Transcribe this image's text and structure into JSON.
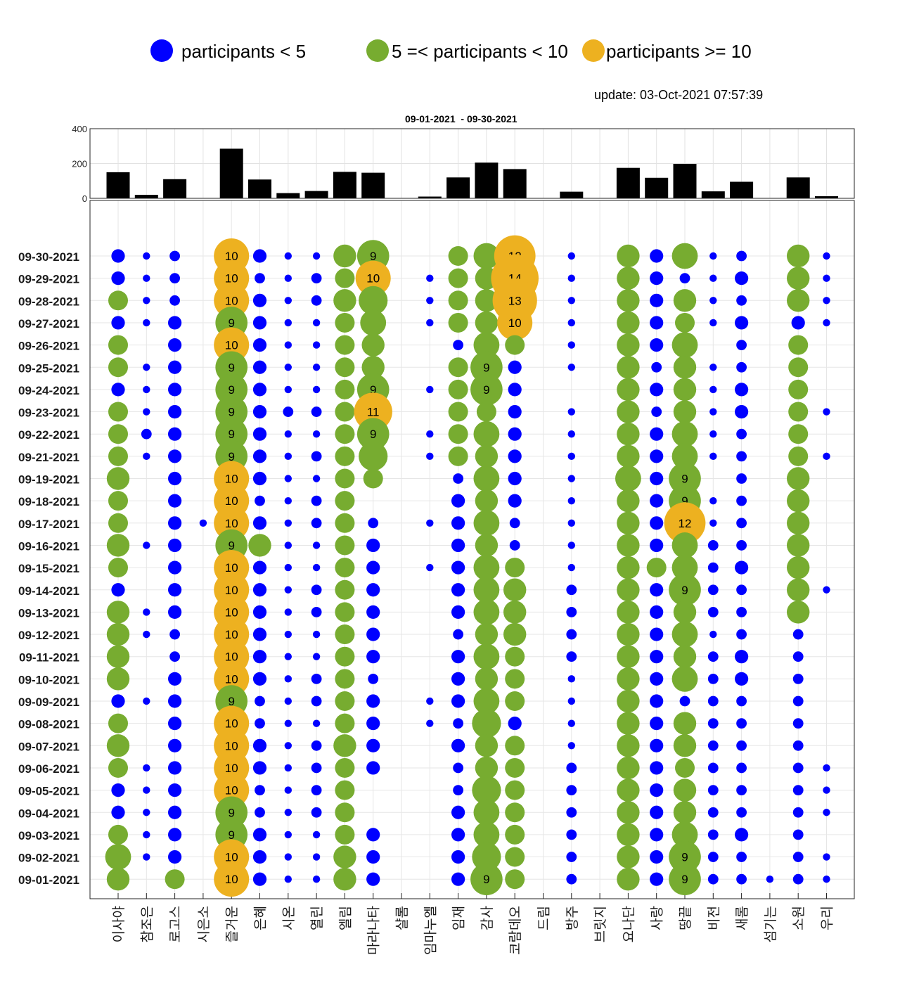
{
  "legend": {
    "low": {
      "label": "participants < 5",
      "color": "#0000ff"
    },
    "mid": {
      "label": "5 =< participants < 10",
      "color": "#77ac30"
    },
    "high": {
      "label": "participants >= 10",
      "color": "#edb120"
    }
  },
  "update_text": "update: 03-Oct-2021 07:57:39",
  "period_text": "09-01-2021  - 09-30-2021",
  "chart_data": [
    {
      "type": "bar",
      "title": "09-01-2021  - 09-30-2021",
      "ylim": [
        0,
        400
      ],
      "yticks": [
        0,
        200,
        400
      ],
      "grid": true,
      "bar_color": "#000000",
      "categories": [
        "이사야",
        "참조은",
        "로고스",
        "시은소",
        "즐거운",
        "은혜",
        "시온",
        "열린",
        "엘림",
        "마라나타",
        "샬롬",
        "임마누엘",
        "임재",
        "감사",
        "코람데오",
        "드림",
        "방주",
        "브릿지",
        "요나단",
        "사랑",
        "땅끝",
        "비전",
        "새롬",
        "섬기는",
        "소원",
        "우리"
      ],
      "values": [
        150,
        20,
        110,
        0,
        285,
        108,
        30,
        42,
        152,
        147,
        0,
        10,
        120,
        205,
        168,
        0,
        38,
        0,
        175,
        118,
        198,
        40,
        95,
        0,
        120,
        12
      ]
    },
    {
      "type": "scatter",
      "subtype": "bubble",
      "grid": true,
      "categories": [
        "이사야",
        "참조은",
        "로고스",
        "시은소",
        "즐거운",
        "은혜",
        "시온",
        "열린",
        "엘림",
        "마라나타",
        "샬롬",
        "임마누엘",
        "임재",
        "감사",
        "코람데오",
        "드림",
        "방주",
        "브릿지",
        "요나단",
        "사랑",
        "땅끝",
        "비전",
        "새롬",
        "섬기는",
        "소원",
        "우리"
      ],
      "dates": [
        "09-30-2021",
        "09-29-2021",
        "09-28-2021",
        "09-27-2021",
        "09-26-2021",
        "09-25-2021",
        "09-24-2021",
        "09-23-2021",
        "09-22-2021",
        "09-21-2021",
        "09-19-2021",
        "09-18-2021",
        "09-17-2021",
        "09-16-2021",
        "09-15-2021",
        "09-14-2021",
        "09-13-2021",
        "09-12-2021",
        "09-11-2021",
        "09-10-2021",
        "09-09-2021",
        "09-08-2021",
        "09-07-2021",
        "09-06-2021",
        "09-05-2021",
        "09-04-2021",
        "09-03-2021",
        "09-02-2021",
        "09-01-2021"
      ],
      "participants": [
        [
          3,
          1,
          2,
          0,
          10,
          3,
          1,
          1,
          6,
          9,
          0,
          0,
          5,
          7,
          12,
          0,
          1,
          0,
          6,
          3,
          7,
          1,
          2,
          0,
          6,
          1
        ],
        [
          3,
          1,
          2,
          0,
          10,
          2,
          1,
          2,
          5,
          10,
          0,
          1,
          5,
          6,
          14,
          0,
          1,
          0,
          6,
          3,
          2,
          1,
          3,
          0,
          6,
          1
        ],
        [
          5,
          1,
          2,
          0,
          10,
          3,
          1,
          2,
          6,
          8,
          0,
          1,
          5,
          6,
          13,
          0,
          1,
          0,
          6,
          3,
          6,
          1,
          2,
          0,
          6,
          1
        ],
        [
          3,
          1,
          3,
          0,
          9,
          3,
          1,
          1,
          5,
          7,
          0,
          1,
          5,
          6,
          10,
          0,
          1,
          0,
          6,
          3,
          5,
          1,
          3,
          0,
          3,
          1
        ],
        [
          5,
          0,
          3,
          0,
          10,
          3,
          1,
          1,
          5,
          6,
          0,
          0,
          2,
          7,
          5,
          0,
          1,
          0,
          6,
          3,
          7,
          0,
          2,
          0,
          5,
          0
        ],
        [
          5,
          1,
          3,
          0,
          9,
          3,
          1,
          1,
          5,
          6,
          0,
          0,
          5,
          9,
          3,
          0,
          1,
          0,
          6,
          2,
          6,
          1,
          2,
          0,
          5,
          0
        ],
        [
          3,
          1,
          3,
          0,
          9,
          3,
          1,
          1,
          5,
          9,
          0,
          1,
          5,
          9,
          3,
          0,
          0,
          0,
          6,
          3,
          6,
          1,
          3,
          0,
          5,
          0
        ],
        [
          5,
          1,
          3,
          0,
          9,
          3,
          2,
          2,
          5,
          11,
          0,
          0,
          5,
          5,
          3,
          0,
          1,
          0,
          6,
          2,
          6,
          1,
          3,
          0,
          5,
          1
        ],
        [
          5,
          2,
          3,
          0,
          9,
          3,
          1,
          1,
          5,
          9,
          0,
          1,
          5,
          7,
          3,
          0,
          1,
          0,
          6,
          3,
          7,
          1,
          2,
          0,
          5,
          0
        ],
        [
          5,
          1,
          3,
          0,
          9,
          3,
          1,
          2,
          5,
          8,
          0,
          1,
          5,
          6,
          3,
          0,
          1,
          0,
          6,
          3,
          7,
          1,
          2,
          0,
          5,
          1
        ],
        [
          6,
          0,
          3,
          0,
          10,
          3,
          1,
          1,
          5,
          5,
          0,
          0,
          2,
          7,
          3,
          0,
          1,
          0,
          7,
          3,
          9,
          0,
          2,
          0,
          6,
          0
        ],
        [
          5,
          0,
          3,
          0,
          10,
          2,
          1,
          2,
          5,
          0,
          0,
          0,
          3,
          6,
          3,
          0,
          1,
          0,
          6,
          3,
          9,
          1,
          2,
          0,
          6,
          0
        ],
        [
          5,
          0,
          3,
          1,
          10,
          3,
          1,
          2,
          5,
          2,
          0,
          1,
          3,
          7,
          2,
          0,
          1,
          0,
          6,
          3,
          12,
          1,
          2,
          0,
          6,
          0
        ],
        [
          6,
          1,
          3,
          0,
          9,
          6,
          1,
          1,
          5,
          3,
          0,
          0,
          3,
          6,
          2,
          0,
          1,
          0,
          6,
          3,
          7,
          2,
          2,
          0,
          6,
          0
        ],
        [
          5,
          0,
          3,
          0,
          10,
          3,
          1,
          1,
          5,
          3,
          0,
          1,
          3,
          7,
          5,
          0,
          1,
          0,
          6,
          5,
          7,
          2,
          3,
          0,
          6,
          0
        ],
        [
          3,
          0,
          3,
          0,
          10,
          3,
          1,
          2,
          5,
          3,
          0,
          0,
          3,
          7,
          6,
          0,
          2,
          0,
          6,
          3,
          9,
          2,
          2,
          0,
          6,
          1
        ],
        [
          6,
          1,
          3,
          0,
          10,
          3,
          1,
          2,
          5,
          3,
          0,
          0,
          3,
          7,
          6,
          0,
          2,
          0,
          6,
          3,
          6,
          2,
          2,
          0,
          6,
          0
        ],
        [
          6,
          1,
          2,
          0,
          10,
          3,
          1,
          1,
          5,
          3,
          0,
          0,
          2,
          6,
          6,
          0,
          2,
          0,
          6,
          3,
          7,
          1,
          2,
          0,
          2,
          0
        ],
        [
          6,
          0,
          2,
          0,
          10,
          3,
          1,
          1,
          5,
          3,
          0,
          0,
          3,
          7,
          5,
          0,
          2,
          0,
          6,
          3,
          6,
          2,
          3,
          0,
          2,
          0
        ],
        [
          6,
          0,
          3,
          0,
          10,
          3,
          1,
          2,
          5,
          2,
          0,
          0,
          3,
          6,
          5,
          0,
          1,
          0,
          6,
          3,
          7,
          2,
          3,
          0,
          2,
          0
        ],
        [
          3,
          1,
          3,
          0,
          9,
          2,
          1,
          2,
          5,
          3,
          0,
          1,
          3,
          7,
          5,
          0,
          1,
          0,
          6,
          3,
          2,
          2,
          2,
          0,
          2,
          0
        ],
        [
          5,
          0,
          3,
          0,
          10,
          2,
          1,
          1,
          5,
          3,
          0,
          1,
          2,
          8,
          3,
          0,
          1,
          0,
          6,
          3,
          6,
          2,
          2,
          0,
          2,
          0
        ],
        [
          6,
          0,
          3,
          0,
          10,
          3,
          1,
          2,
          6,
          3,
          0,
          0,
          3,
          6,
          5,
          0,
          1,
          0,
          6,
          3,
          6,
          2,
          2,
          0,
          2,
          0
        ],
        [
          5,
          1,
          3,
          0,
          10,
          3,
          1,
          2,
          5,
          3,
          0,
          0,
          2,
          6,
          5,
          0,
          2,
          0,
          6,
          3,
          5,
          2,
          2,
          0,
          2,
          1
        ],
        [
          3,
          1,
          3,
          0,
          10,
          2,
          1,
          2,
          5,
          0,
          0,
          0,
          2,
          8,
          5,
          0,
          2,
          0,
          6,
          3,
          6,
          2,
          2,
          0,
          2,
          1
        ],
        [
          3,
          1,
          3,
          0,
          9,
          2,
          1,
          2,
          5,
          0,
          0,
          0,
          3,
          7,
          5,
          0,
          2,
          0,
          6,
          3,
          6,
          2,
          2,
          0,
          2,
          1
        ],
        [
          5,
          1,
          3,
          0,
          9,
          3,
          1,
          1,
          5,
          3,
          0,
          0,
          3,
          7,
          5,
          0,
          2,
          0,
          6,
          3,
          7,
          2,
          3,
          0,
          2,
          0
        ],
        [
          7,
          1,
          3,
          0,
          10,
          3,
          1,
          1,
          6,
          3,
          0,
          0,
          3,
          8,
          5,
          0,
          2,
          0,
          6,
          3,
          9,
          2,
          2,
          0,
          2,
          1
        ],
        [
          6,
          0,
          5,
          0,
          10,
          3,
          1,
          1,
          6,
          3,
          0,
          0,
          3,
          9,
          5,
          0,
          2,
          0,
          6,
          3,
          9,
          2,
          2,
          1,
          2,
          1
        ]
      ]
    }
  ]
}
